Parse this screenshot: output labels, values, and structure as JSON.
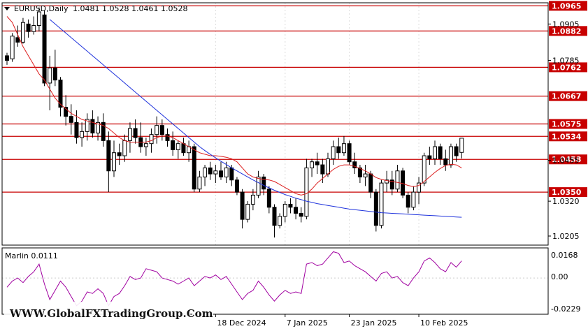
{
  "header": {
    "symbol": "EURUSD,Daily",
    "ohlc": "1.0481 1.0528 1.0461 1.0528"
  },
  "indicator": {
    "label": "Marlin 0.0111",
    "scale": [
      "0.0168",
      "0.00",
      "-0.0229"
    ]
  },
  "watermark": "WWW.GlobalFXTradingGroup.Com",
  "colors": {
    "level_line": "#c80000",
    "ma_fast": "#dc1e1e",
    "ma_slow": "#1e32dc",
    "marlin": "#a000a0"
  },
  "chart_data": {
    "type": "candlestick",
    "price_axis_ticks": [
      "1.0905",
      "1.0785",
      "1.0455",
      "1.0320",
      "1.0205"
    ],
    "levels": [
      {
        "label": "1.0965",
        "value": 1.0965
      },
      {
        "label": "1.0882",
        "value": 1.0882
      },
      {
        "label": "1.0762",
        "value": 1.0762
      },
      {
        "label": "1.0667",
        "value": 1.0667
      },
      {
        "label": "1.0575",
        "value": 1.0575
      },
      {
        "label": "1.0534",
        "value": 1.0534
      },
      {
        "label": "1.0458",
        "value": 1.0458
      },
      {
        "label": "1.0350",
        "value": 1.035
      }
    ],
    "date_labels": [
      {
        "label": "18 Dec 2024",
        "index": 39
      },
      {
        "label": "7 Jan 2025",
        "index": 52
      },
      {
        "label": "23 Jan 2025",
        "index": 64
      },
      {
        "label": "10 Feb 2025",
        "index": 77
      }
    ],
    "price_range": [
      1.0175,
      1.0975
    ],
    "indicator_range": [
      -0.0235,
      0.0195
    ],
    "candles": [
      [
        1.08,
        1.081,
        1.077,
        1.0785
      ],
      [
        1.079,
        1.0875,
        1.078,
        1.0865
      ],
      [
        1.086,
        1.09,
        1.083,
        1.0845
      ],
      [
        1.0845,
        1.0925,
        1.084,
        1.091
      ],
      [
        1.0905,
        1.092,
        1.086,
        1.088
      ],
      [
        1.088,
        1.093,
        1.087,
        1.09
      ],
      [
        1.09,
        1.096,
        1.088,
        1.0945
      ],
      [
        1.0935,
        1.095,
        1.07,
        1.071
      ],
      [
        1.071,
        1.08,
        1.062,
        1.076
      ],
      [
        1.076,
        1.082,
        1.07,
        1.072
      ],
      [
        1.072,
        1.073,
        1.06,
        1.063
      ],
      [
        1.063,
        1.067,
        1.057,
        1.06
      ],
      [
        1.06,
        1.064,
        1.054,
        1.058
      ],
      [
        1.058,
        1.062,
        1.051,
        1.053
      ],
      [
        1.053,
        1.058,
        1.05,
        1.055
      ],
      [
        1.055,
        1.061,
        1.052,
        1.059
      ],
      [
        1.059,
        1.062,
        1.053,
        1.0545
      ],
      [
        1.0545,
        1.06,
        1.052,
        1.058
      ],
      [
        1.058,
        1.061,
        1.05,
        1.052
      ],
      [
        1.052,
        1.055,
        1.035,
        1.042
      ],
      [
        1.042,
        1.052,
        1.04,
        1.048
      ],
      [
        1.048,
        1.051,
        1.044,
        1.047
      ],
      [
        1.047,
        1.054,
        1.045,
        1.052
      ],
      [
        1.052,
        1.058,
        1.048,
        1.056
      ],
      [
        1.056,
        1.059,
        1.051,
        1.053
      ],
      [
        1.053,
        1.058,
        1.048,
        1.05
      ],
      [
        1.05,
        1.053,
        1.047,
        1.051
      ],
      [
        1.051,
        1.056,
        1.048,
        1.054
      ],
      [
        1.054,
        1.06,
        1.051,
        1.057
      ],
      [
        1.057,
        1.059,
        1.052,
        1.054
      ],
      [
        1.054,
        1.056,
        1.05,
        1.052
      ],
      [
        1.052,
        1.055,
        1.047,
        1.049
      ],
      [
        1.049,
        1.052,
        1.046,
        1.051
      ],
      [
        1.051,
        1.053,
        1.047,
        1.048
      ],
      [
        1.048,
        1.052,
        1.045,
        1.05
      ],
      [
        1.05,
        1.051,
        1.035,
        1.036
      ],
      [
        1.036,
        1.042,
        1.035,
        1.04
      ],
      [
        1.04,
        1.044,
        1.037,
        1.043
      ],
      [
        1.043,
        1.045,
        1.039,
        1.041
      ],
      [
        1.041,
        1.044,
        1.038,
        1.042
      ],
      [
        1.042,
        1.045,
        1.039,
        1.04
      ],
      [
        1.04,
        1.045,
        1.038,
        1.043
      ],
      [
        1.043,
        1.044,
        1.037,
        1.039
      ],
      [
        1.039,
        1.04,
        1.034,
        1.035
      ],
      [
        1.035,
        1.036,
        1.023,
        1.026
      ],
      [
        1.026,
        1.032,
        1.025,
        1.031
      ],
      [
        1.031,
        1.036,
        1.029,
        1.034
      ],
      [
        1.034,
        1.042,
        1.033,
        1.04
      ],
      [
        1.04,
        1.041,
        1.034,
        1.036
      ],
      [
        1.036,
        1.037,
        1.028,
        1.03
      ],
      [
        1.03,
        1.031,
        1.02,
        1.024
      ],
      [
        1.024,
        1.028,
        1.023,
        1.027
      ],
      [
        1.027,
        1.032,
        1.025,
        1.031
      ],
      [
        1.031,
        1.033,
        1.028,
        1.03
      ],
      [
        1.03,
        1.033,
        1.026,
        1.028
      ],
      [
        1.028,
        1.03,
        1.025,
        1.027
      ],
      [
        1.027,
        1.046,
        1.026,
        1.043
      ],
      [
        1.043,
        1.046,
        1.04,
        1.045
      ],
      [
        1.045,
        1.048,
        1.041,
        1.044
      ],
      [
        1.044,
        1.046,
        1.038,
        1.041
      ],
      [
        1.041,
        1.048,
        1.04,
        1.046
      ],
      [
        1.046,
        1.052,
        1.044,
        1.05
      ],
      [
        1.05,
        1.053,
        1.046,
        1.048
      ],
      [
        1.048,
        1.0535,
        1.047,
        1.051
      ],
      [
        1.051,
        1.052,
        1.044,
        1.045
      ],
      [
        1.045,
        1.048,
        1.041,
        1.043
      ],
      [
        1.043,
        1.044,
        1.038,
        1.04
      ],
      [
        1.04,
        1.044,
        1.037,
        1.041
      ],
      [
        1.041,
        1.042,
        1.033,
        1.035
      ],
      [
        1.035,
        1.036,
        1.022,
        1.024
      ],
      [
        1.024,
        1.039,
        1.023,
        1.038
      ],
      [
        1.038,
        1.042,
        1.035,
        1.039
      ],
      [
        1.039,
        1.042,
        1.034,
        1.036
      ],
      [
        1.036,
        1.044,
        1.035,
        1.042
      ],
      [
        1.042,
        1.043,
        1.033,
        1.034
      ],
      [
        1.034,
        1.035,
        1.028,
        1.03
      ],
      [
        1.03,
        1.037,
        1.029,
        1.035
      ],
      [
        1.035,
        1.04,
        1.031,
        1.038
      ],
      [
        1.038,
        1.048,
        1.037,
        1.047
      ],
      [
        1.047,
        1.05,
        1.044,
        1.046
      ],
      [
        1.046,
        1.052,
        1.044,
        1.05
      ],
      [
        1.05,
        1.051,
        1.044,
        1.046
      ],
      [
        1.046,
        1.049,
        1.042,
        1.044
      ],
      [
        1.044,
        1.051,
        1.043,
        1.05
      ],
      [
        1.05,
        1.051,
        1.045,
        1.047
      ],
      [
        1.0481,
        1.0528,
        1.0461,
        1.0528
      ]
    ],
    "ma_fast": [
      1.093,
      1.091,
      1.087,
      1.083,
      1.08,
      1.077,
      1.074,
      1.072,
      1.069,
      1.066,
      1.064,
      1.0625,
      1.061,
      1.06,
      1.059,
      1.0585,
      1.058,
      1.0575,
      1.057,
      1.056,
      1.0545,
      1.053,
      1.052,
      1.0515,
      1.0515,
      1.0515,
      1.0515,
      1.052,
      1.053,
      1.0535,
      1.0535,
      1.053,
      1.052,
      1.051,
      1.05,
      1.049,
      1.048,
      1.0475,
      1.047,
      1.047,
      1.0468,
      1.0465,
      1.046,
      1.045,
      1.043,
      1.041,
      1.04,
      1.0395,
      1.0392,
      1.039,
      1.0385,
      1.0375,
      1.0365,
      1.0355,
      1.0345,
      1.034,
      1.0345,
      1.036,
      1.038,
      1.0395,
      1.041,
      1.0425,
      1.0435,
      1.044,
      1.044,
      1.0435,
      1.0428,
      1.042,
      1.041,
      1.0398,
      1.0392,
      1.0388,
      1.0385,
      1.0382,
      1.0378,
      1.0372,
      1.0368,
      1.0372,
      1.0385,
      1.04,
      1.0415,
      1.0428,
      1.0438,
      1.0442,
      1.044,
      1.043
    ],
    "ma_slow": [
      null,
      null,
      null,
      null,
      null,
      null,
      null,
      null,
      1.092,
      1.0905,
      1.089,
      1.0875,
      1.086,
      1.0845,
      1.083,
      1.0815,
      1.08,
      1.0785,
      1.077,
      1.0755,
      1.074,
      1.0725,
      1.071,
      1.0695,
      1.068,
      1.0665,
      1.065,
      1.0635,
      1.062,
      1.0605,
      1.059,
      1.0575,
      1.056,
      1.0545,
      1.053,
      1.0515,
      1.05,
      1.0487,
      1.0475,
      1.0463,
      1.0452,
      1.0441,
      1.043,
      1.042,
      1.041,
      1.04,
      1.039,
      1.0381,
      1.0372,
      1.0364,
      1.0356,
      1.0349,
      1.0342,
      1.0336,
      1.033,
      1.0325,
      1.032,
      1.0316,
      1.0312,
      1.0309,
      1.0306,
      1.0303,
      1.03,
      1.0297,
      1.0294,
      1.0292,
      1.029,
      1.0288,
      1.0286,
      1.0284,
      1.0282,
      1.0281,
      1.028,
      1.0279,
      1.0278,
      1.0277,
      1.0276,
      1.0275,
      1.0274,
      1.0273,
      1.0272,
      1.0271,
      1.027,
      1.0269,
      1.0268,
      1.0267
    ],
    "marlin": [
      -0.006,
      -0.002,
      0.0,
      -0.003,
      0.001,
      0.004,
      0.009,
      -0.004,
      -0.014,
      -0.008,
      -0.002,
      -0.006,
      -0.012,
      -0.018,
      -0.015,
      -0.009,
      -0.01,
      -0.007,
      -0.01,
      -0.018,
      -0.012,
      -0.01,
      -0.005,
      0.001,
      -0.001,
      0.0,
      0.006,
      0.005,
      0.004,
      0.0,
      -0.001,
      -0.002,
      -0.004,
      -0.002,
      0.0,
      -0.005,
      -0.002,
      0.001,
      0.0,
      0.002,
      -0.001,
      0.001,
      -0.004,
      -0.009,
      -0.014,
      -0.01,
      -0.008,
      -0.002,
      -0.006,
      -0.011,
      -0.015,
      -0.011,
      -0.008,
      -0.01,
      -0.009,
      -0.01,
      0.009,
      0.01,
      0.008,
      0.009,
      0.013,
      0.017,
      0.016,
      0.01,
      0.011,
      0.008,
      0.006,
      0.004,
      0.001,
      -0.002,
      0.003,
      0.004,
      0.0,
      0.001,
      -0.003,
      -0.005,
      0.0,
      0.004,
      0.011,
      0.013,
      0.01,
      0.006,
      0.004,
      0.01,
      0.007,
      0.0111
    ]
  }
}
